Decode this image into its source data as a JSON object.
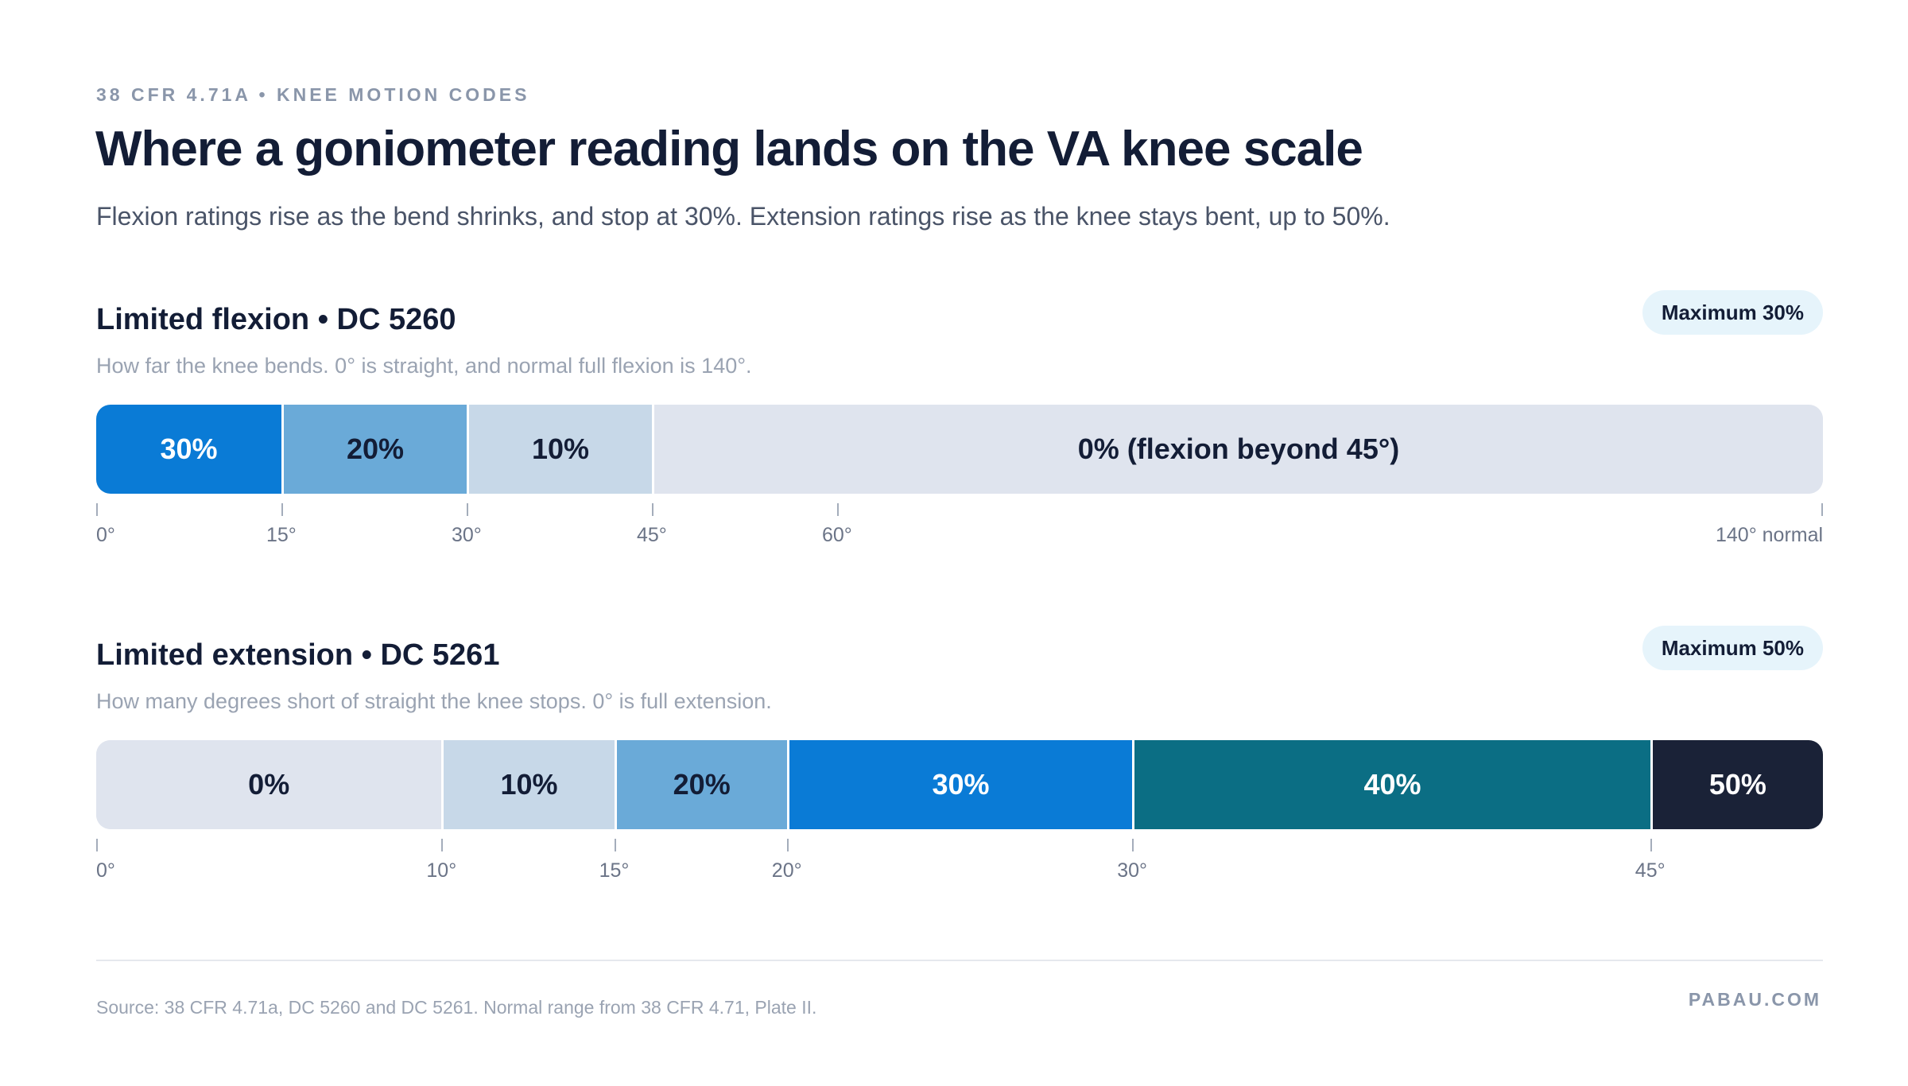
{
  "header": {
    "eyebrow": "38 CFR 4.71A • KNEE MOTION CODES",
    "title": "Where a goniometer reading lands on the VA knee scale",
    "subtitle": "Flexion ratings rise as the bend shrinks, and stop at 30%. Extension ratings rise as the knee stays bent, up to 50%."
  },
  "flexion": {
    "title": "Limited flexion • DC 5260",
    "badge": "Maximum 30%",
    "description": "How far the knee bends. 0° is straight, and normal full flexion is 140°.",
    "axis_max": 140,
    "segments": [
      {
        "label": "30%",
        "from": 0,
        "to": 15,
        "color": "#0a7bd6",
        "text_color": "#ffffff"
      },
      {
        "label": "20%",
        "from": 15,
        "to": 30,
        "color": "#6aaad8",
        "text_color": "#131d36"
      },
      {
        "label": "10%",
        "from": 30,
        "to": 45,
        "color": "#c7d8e8",
        "text_color": "#131d36"
      },
      {
        "label": "0% (flexion beyond 45°)",
        "from": 45,
        "to": 140,
        "color": "#dfe4ee",
        "text_color": "#131d36"
      }
    ],
    "ticks": [
      {
        "value": 0,
        "label": "0°"
      },
      {
        "value": 15,
        "label": "15°"
      },
      {
        "value": 30,
        "label": "30°"
      },
      {
        "value": 45,
        "label": "45°"
      },
      {
        "value": 60,
        "label": "60°"
      },
      {
        "value": 140,
        "label": "140° normal"
      }
    ]
  },
  "extension": {
    "title": "Limited extension • DC 5261",
    "badge": "Maximum 50%",
    "description": "How many degrees short of straight the knee stops. 0° is full extension.",
    "axis_max": 50,
    "segments": [
      {
        "label": "0%",
        "from": 0,
        "to": 10,
        "color": "#dfe4ee",
        "text_color": "#131d36"
      },
      {
        "label": "10%",
        "from": 10,
        "to": 15,
        "color": "#c7d8e8",
        "text_color": "#131d36"
      },
      {
        "label": "20%",
        "from": 15,
        "to": 20,
        "color": "#6aaad8",
        "text_color": "#131d36"
      },
      {
        "label": "30%",
        "from": 20,
        "to": 30,
        "color": "#0a7bd6",
        "text_color": "#ffffff"
      },
      {
        "label": "40%",
        "from": 30,
        "to": 45,
        "color": "#0b6e84",
        "text_color": "#ffffff"
      },
      {
        "label": "50%",
        "from": 45,
        "to": 50,
        "color": "#1a2237",
        "text_color": "#ffffff"
      }
    ],
    "ticks": [
      {
        "value": 0,
        "label": "0°"
      },
      {
        "value": 10,
        "label": "10°"
      },
      {
        "value": 15,
        "label": "15°"
      },
      {
        "value": 20,
        "label": "20°"
      },
      {
        "value": 30,
        "label": "30°"
      },
      {
        "value": 45,
        "label": "45°"
      }
    ]
  },
  "footer": {
    "source": "Source: 38 CFR 4.71a, DC 5260 and DC 5261. Normal range from 38 CFR 4.71, Plate II.",
    "brand": "PABAU.COM"
  }
}
